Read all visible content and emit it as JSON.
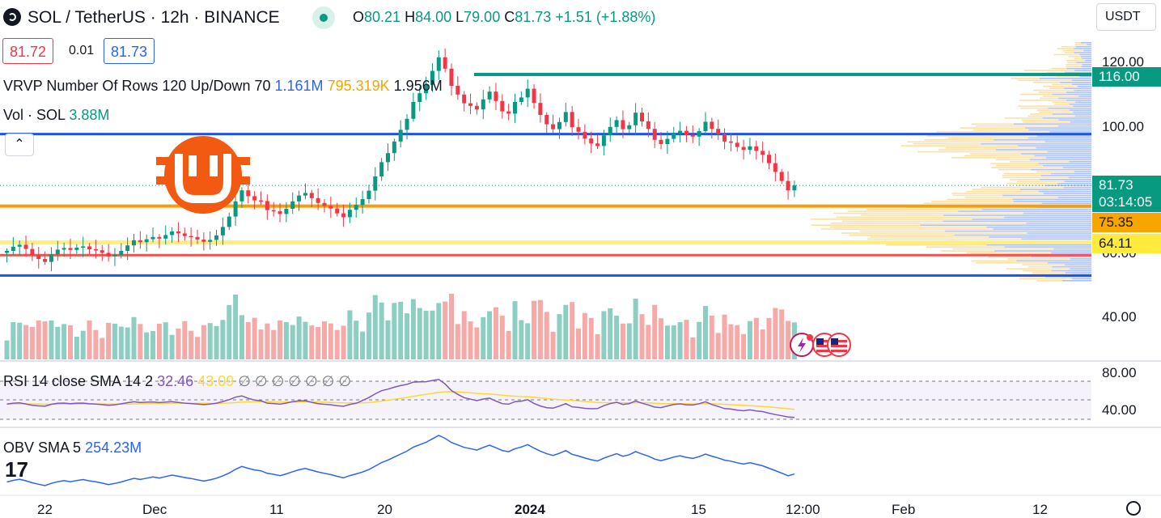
{
  "header": {
    "title": "SOL / TetherUS · 12h · BINANCE",
    "ohlc": {
      "o_label": "O",
      "o": "80.21",
      "h_label": "H",
      "h": "84.00",
      "l_label": "L",
      "l": "79.00",
      "c_label": "C",
      "c": "81.73",
      "change": "+1.51 (+1.88%)"
    },
    "bid": "81.72",
    "spread": "0.01",
    "ask": "81.73",
    "currency": "USDT"
  },
  "indicators": {
    "vrvp": {
      "label": "VRVP Number Of Rows 120 Up/Down 70",
      "up": "1.161M",
      "down": "795.319K",
      "total": "1.956M"
    },
    "volume": {
      "label": "Vol · SOL",
      "value": "3.88M"
    },
    "rsi": {
      "label": "RSI 14 close SMA 14 2",
      "rsi": "32.46",
      "sma": "43.09",
      "extras": "∅ ∅ ∅ ∅ ∅ ∅ ∅"
    },
    "obv": {
      "label": "OBV SMA 5",
      "value": "254.23M"
    }
  },
  "price_axis": {
    "labels": [
      "120.00",
      "100.00",
      "60.00",
      "40.00"
    ],
    "rsi_labels": [
      "80.00",
      "40.00"
    ]
  },
  "price_tags": [
    {
      "text": "116.00",
      "color": "#089981"
    },
    {
      "text": "81.73",
      "color": "#089981"
    },
    {
      "text": "03:14:05",
      "color": "#089981"
    },
    {
      "text": "75.35",
      "color": "#f7a600"
    },
    {
      "text": "64.11",
      "color": "#ffeb3b"
    }
  ],
  "time_axis": [
    "22",
    "Dec",
    "11",
    "20",
    "2024",
    "15",
    "12:00",
    "Feb",
    "12"
  ],
  "chart_data": [
    {
      "type": "candlestick",
      "title": "SOL / TetherUS · 12h · BINANCE",
      "interval": "12h",
      "ylim": [
        30,
        130
      ],
      "close": [
        61.5,
        62.8,
        63.4,
        62.1,
        60.2,
        59.0,
        58.1,
        60.5,
        61.9,
        62.4,
        61.8,
        62.5,
        62.9,
        62.0,
        61.7,
        60.9,
        59.8,
        60.3,
        61.5,
        63.2,
        64.8,
        64.2,
        65.1,
        65.8,
        65.3,
        66.4,
        67.5,
        66.9,
        66.1,
        65.8,
        65.0,
        64.3,
        64.9,
        66.3,
        68.9,
        72.1,
        76.8,
        80.2,
        78.4,
        77.1,
        76.9,
        74.1,
        73.8,
        72.9,
        74.5,
        76.8,
        78.6,
        79.4,
        77.8,
        76.3,
        75.4,
        74.6,
        73.1,
        71.9,
        74.2,
        75.7,
        77.5,
        80.1,
        84.5,
        88.9,
        91.7,
        95.3,
        98.9,
        102.3,
        107.5,
        110.2,
        112.8,
        117.1,
        121.3,
        117.8,
        112.5,
        109.8,
        107.1,
        106.3,
        105.2,
        108.3,
        110.7,
        107.8,
        104.6,
        103.9,
        107.5,
        108.9,
        111.6,
        107.2,
        103.5,
        100.6,
        99.1,
        101.3,
        104.4,
        99.7,
        98.3,
        96.2,
        94.7,
        93.9,
        97.2,
        99.8,
        101.9,
        99.1,
        100.3,
        104.2,
        101.5,
        99.2,
        95.8,
        94.5,
        96.1,
        97.8,
        98.6,
        97.3,
        96.8,
        98.5,
        101.4,
        99.2,
        97.6,
        95.3,
        94.9,
        93.6,
        92.7,
        93.8,
        92.4,
        91.2,
        88.6,
        85.9,
        83.1,
        80.2,
        81.73
      ],
      "series": [
        {
          "name": "RSI 14",
          "value": 32.46
        },
        {
          "name": "RSI SMA 14",
          "value": 43.09
        },
        {
          "name": "OBV",
          "value": 254.23
        }
      ],
      "horizontal_levels": [
        116.0,
        97.6,
        75.35,
        64.11,
        60.2,
        53.9
      ],
      "last_price": 81.73,
      "volume_last": "3.88M"
    }
  ]
}
